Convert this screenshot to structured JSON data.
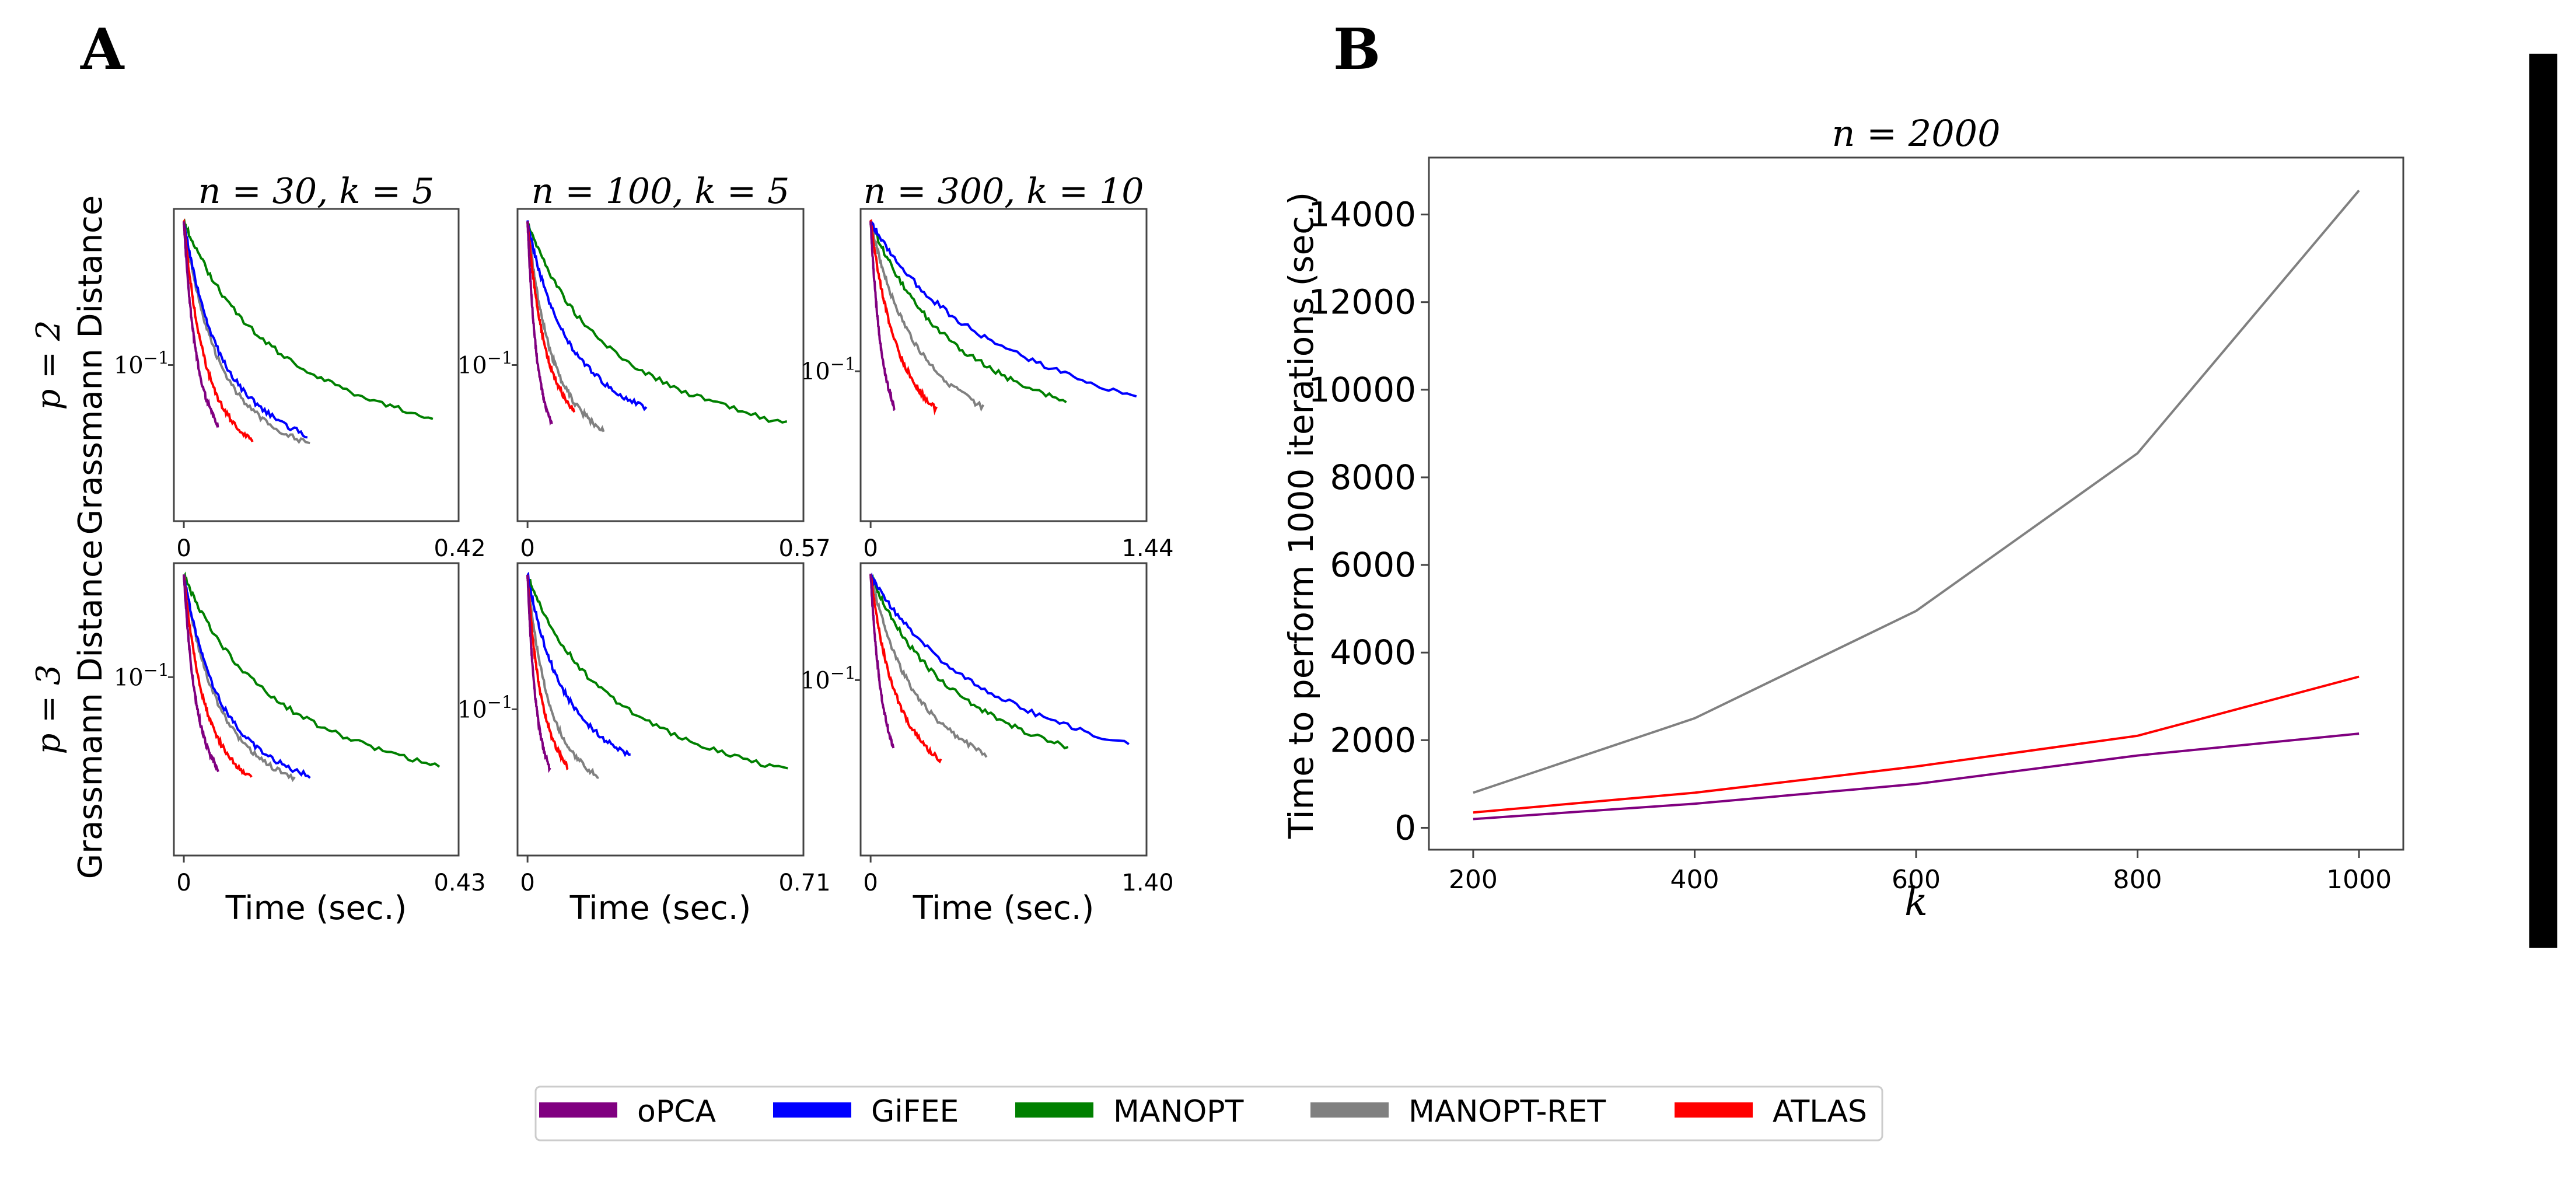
{
  "panel_labels": [
    "A",
    "B"
  ],
  "colors": {
    "oPCA": "#800080",
    "GiFEE": "#0000ff",
    "MANOPT": "#008000",
    "MANOPT-RET": "#808080",
    "ATLAS": "#ff0000"
  },
  "legend": {
    "placement": "bottom-center",
    "entries": [
      "oPCA",
      "GiFEE",
      "MANOPT",
      "MANOPT-RET",
      "ATLAS"
    ]
  },
  "chart_data": [
    {
      "id": "A",
      "type": "line",
      "grid_layout": "2x3 small multiples",
      "col_titles": [
        "n = 30, k = 5",
        "n = 100, k = 5",
        "n = 300, k = 10"
      ],
      "row_labels": [
        "p = 2",
        "p = 3"
      ],
      "ylabel": "Grassmann Distance",
      "xlabel": "Time (sec.)",
      "yscale": "log",
      "ytick_label": "10",
      "ytick_exp": "−1",
      "xtick_zero": "0",
      "xmax_labels": [
        [
          "0.42",
          "0.57",
          "1.44"
        ],
        [
          "0.43",
          "0.71",
          "1.40"
        ]
      ],
      "ytick_frac": [
        [
          0.5,
          0.5,
          0.52
        ],
        [
          0.39,
          0.5,
          0.4
        ]
      ],
      "panels": [
        [
          {
            "xmax": 0.42,
            "series": {
              "oPCA": {
                "end": 0.054,
                "floor": 0.94,
                "tau": 0.016,
                "mid": 0.55
              },
              "GiFEE": {
                "end": 0.196,
                "floor": 0.93,
                "tau": 0.045,
                "mid": 0.54
              },
              "MANOPT": {
                "end": 0.395,
                "floor": 0.93,
                "tau": 0.09,
                "mid": 0.4
              },
              "MANOPT-RET": {
                "end": 0.2,
                "floor": 0.93,
                "tau": 0.045,
                "mid": 0.6
              },
              "ATLAS": {
                "end": 0.11,
                "floor": 0.93,
                "tau": 0.028,
                "mid": 0.62
              }
            }
          },
          {
            "xmax": 0.57,
            "series": {
              "oPCA": {
                "end": 0.052,
                "floor": 0.95,
                "tau": 0.016,
                "mid": 0.55
              },
              "GiFEE": {
                "end": 0.255,
                "floor": 0.87,
                "tau": 0.06,
                "mid": 0.45
              },
              "MANOPT": {
                "end": 0.556,
                "floor": 0.9,
                "tau": 0.1,
                "mid": 0.38
              },
              "MANOPT-RET": {
                "end": 0.163,
                "floor": 0.92,
                "tau": 0.04,
                "mid": 0.55
              },
              "ATLAS": {
                "end": 0.1,
                "floor": 0.88,
                "tau": 0.03,
                "mid": 0.55
              }
            }
          },
          {
            "xmax": 1.44,
            "series": {
              "oPCA": {
                "end": 0.13,
                "floor": 0.94,
                "tau": 0.05,
                "mid": 0.55
              },
              "GiFEE": {
                "end": 1.44,
                "floor": 0.91,
                "tau": 0.35,
                "mid": 0.3
              },
              "MANOPT": {
                "end": 1.06,
                "floor": 0.93,
                "tau": 0.28,
                "mid": 0.36
              },
              "MANOPT-RET": {
                "end": 0.61,
                "floor": 0.93,
                "tau": 0.17,
                "mid": 0.42
              },
              "ATLAS": {
                "end": 0.36,
                "floor": 0.93,
                "tau": 0.11,
                "mid": 0.48
              }
            }
          }
        ],
        [
          {
            "xmax": 0.43,
            "series": {
              "oPCA": {
                "end": 0.056,
                "floor": 0.95,
                "tau": 0.016,
                "mid": 0.55
              },
              "GiFEE": {
                "end": 0.205,
                "floor": 0.92,
                "tau": 0.045,
                "mid": 0.55
              },
              "MANOPT": {
                "end": 0.415,
                "floor": 0.95,
                "tau": 0.09,
                "mid": 0.4
              },
              "MANOPT-RET": {
                "end": 0.18,
                "floor": 0.94,
                "tau": 0.045,
                "mid": 0.58
              },
              "ATLAS": {
                "end": 0.11,
                "floor": 0.93,
                "tau": 0.028,
                "mid": 0.6
              }
            }
          },
          {
            "xmax": 0.71,
            "series": {
              "oPCA": {
                "end": 0.06,
                "floor": 0.96,
                "tau": 0.018,
                "mid": 0.55
              },
              "GiFEE": {
                "end": 0.275,
                "floor": 0.92,
                "tau": 0.07,
                "mid": 0.45
              },
              "MANOPT": {
                "end": 0.695,
                "floor": 0.94,
                "tau": 0.13,
                "mid": 0.38
              },
              "MANOPT-RET": {
                "end": 0.19,
                "floor": 0.94,
                "tau": 0.045,
                "mid": 0.55
              },
              "ATLAS": {
                "end": 0.108,
                "floor": 0.93,
                "tau": 0.03,
                "mid": 0.55
              }
            }
          },
          {
            "xmax": 1.4,
            "series": {
              "oPCA": {
                "end": 0.12,
                "floor": 0.95,
                "tau": 0.05,
                "mid": 0.55
              },
              "GiFEE": {
                "end": 1.36,
                "floor": 0.94,
                "tau": 0.33,
                "mid": 0.3
              },
              "MANOPT": {
                "end": 1.04,
                "floor": 0.94,
                "tau": 0.27,
                "mid": 0.36
              },
              "MANOPT-RET": {
                "end": 0.61,
                "floor": 0.94,
                "tau": 0.16,
                "mid": 0.42
              },
              "ATLAS": {
                "end": 0.37,
                "floor": 0.94,
                "tau": 0.1,
                "mid": 0.48
              }
            }
          }
        ]
      ]
    },
    {
      "id": "B",
      "type": "line",
      "title": "n = 2000",
      "xlabel": "k",
      "ylabel": "Time to perform 1000 iterations (sec.)",
      "x": [
        200,
        400,
        600,
        800,
        1000
      ],
      "xticks": [
        "200",
        "400",
        "600",
        "800",
        "1000"
      ],
      "yticks": [
        "0",
        "2000",
        "4000",
        "6000",
        "8000",
        "10000",
        "12000",
        "14000"
      ],
      "xlim": [
        160,
        1040
      ],
      "ylim": [
        -500,
        15300
      ],
      "series": [
        {
          "name": "MANOPT-RET",
          "values": [
            800,
            2500,
            4950,
            8550,
            14550
          ]
        },
        {
          "name": "ATLAS",
          "values": [
            350,
            800,
            1400,
            2100,
            3450
          ]
        },
        {
          "name": "oPCA",
          "values": [
            200,
            550,
            1000,
            1650,
            2150
          ]
        }
      ]
    }
  ]
}
